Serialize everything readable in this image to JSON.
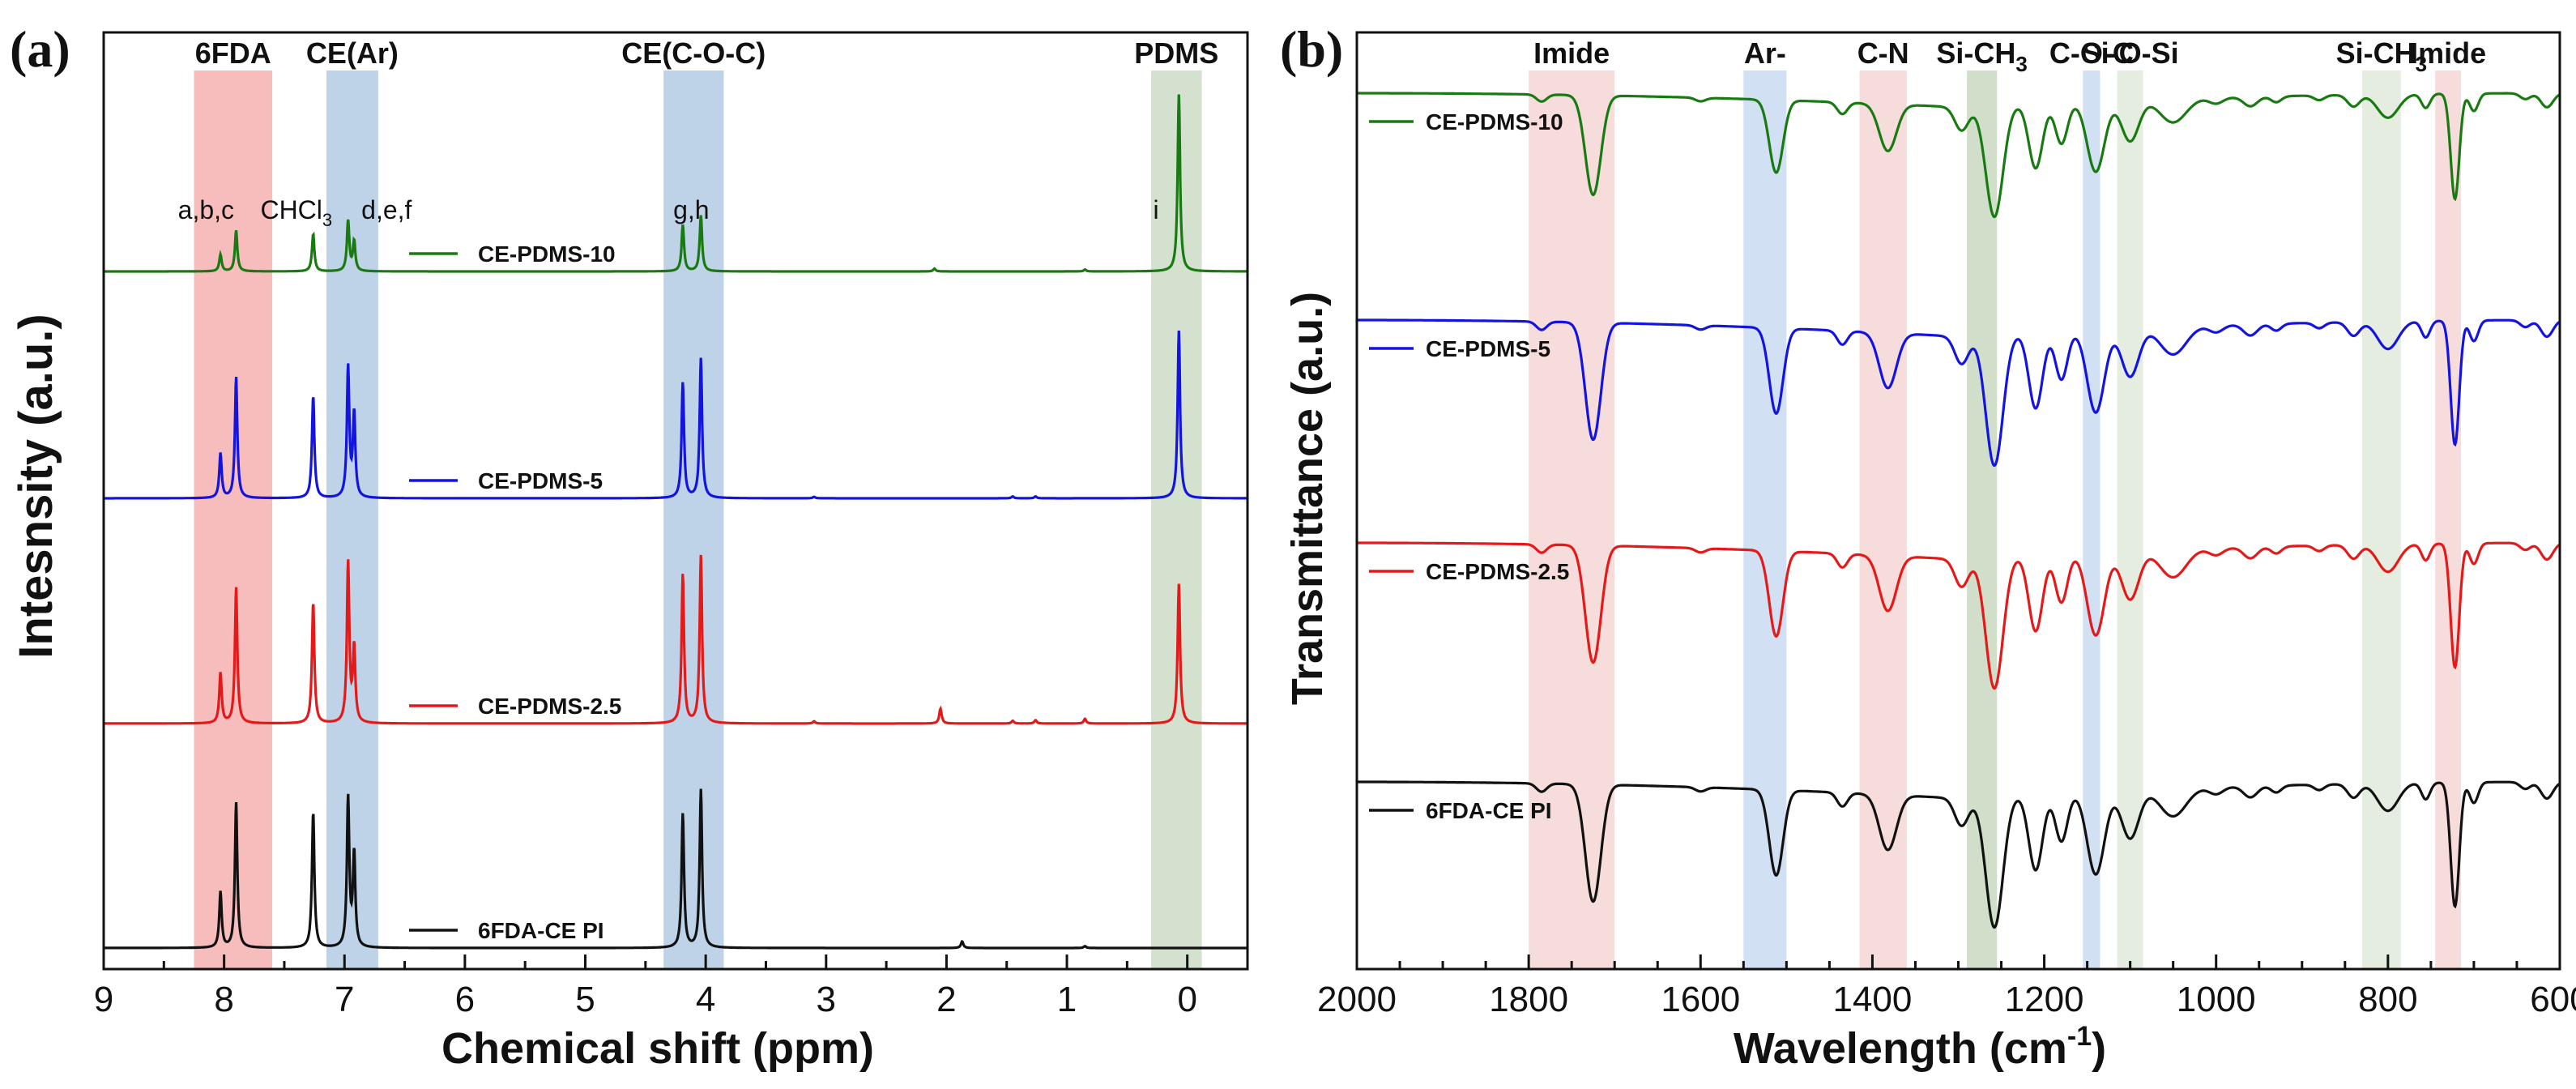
{
  "panels": [
    {
      "id": "a",
      "panel_label": "(a)",
      "chart_data": {
        "type": "line",
        "title": "",
        "xlabel": "Chemical shift (ppm)",
        "ylabel": "Intesnsity (a.u.)",
        "xlim": [
          9,
          -0.5
        ],
        "x_reversed": true,
        "xticks": [
          9,
          8,
          7,
          6,
          5,
          4,
          3,
          2,
          1,
          0
        ],
        "grid": false,
        "legend_position": "inline-left-of-peaks",
        "bands": [
          {
            "label": "6FDA",
            "from": 8.25,
            "to": 7.6,
            "color": "#f4a6a6"
          },
          {
            "label": "CE(Ar)",
            "from": 7.15,
            "to": 6.72,
            "color": "#a9c4e0"
          },
          {
            "label": "CE(C-O-C)",
            "from": 4.35,
            "to": 3.85,
            "color": "#a9c4e0"
          },
          {
            "label": "PDMS",
            "from": 0.3,
            "to": -0.12,
            "color": "#c4d7bd"
          }
        ],
        "peak_labels": [
          {
            "text": "a,b,c",
            "x": 8.15
          },
          {
            "text": "CHCl",
            "sub": "3",
            "x": 7.4
          },
          {
            "text": "d,e,f",
            "x": 6.65
          },
          {
            "text": "g,h",
            "x": 4.12
          },
          {
            "text": "i",
            "x": 0.26
          }
        ],
        "series": [
          {
            "name": "CE-PDMS-10",
            "color": "#1a7a12",
            "offset": 3,
            "peaks": [
              [
                8.03,
                0.09
              ],
              [
                7.9,
                0.22
              ],
              [
                7.26,
                0.2
              ],
              [
                6.97,
                0.27
              ],
              [
                6.92,
                0.16
              ],
              [
                4.19,
                0.25
              ],
              [
                4.04,
                0.3
              ],
              [
                2.1,
                0.015
              ],
              [
                0.85,
                0.01
              ],
              [
                0.07,
                0.95
              ]
            ]
          },
          {
            "name": "CE-PDMS-5",
            "color": "#1414e0",
            "offset": 2,
            "peaks": [
              [
                8.03,
                0.24
              ],
              [
                7.9,
                0.65
              ],
              [
                7.26,
                0.55
              ],
              [
                6.97,
                0.7
              ],
              [
                6.92,
                0.45
              ],
              [
                4.19,
                0.62
              ],
              [
                4.04,
                0.75
              ],
              [
                3.1,
                0.008
              ],
              [
                1.45,
                0.01
              ],
              [
                1.26,
                0.01
              ],
              [
                0.07,
                0.9
              ]
            ]
          },
          {
            "name": "CE-PDMS-2.5",
            "color": "#e41a1a",
            "offset": 1,
            "peaks": [
              [
                8.03,
                0.27
              ],
              [
                7.9,
                0.73
              ],
              [
                7.26,
                0.65
              ],
              [
                6.97,
                0.86
              ],
              [
                6.92,
                0.4
              ],
              [
                4.19,
                0.8
              ],
              [
                4.04,
                0.9
              ],
              [
                3.1,
                0.012
              ],
              [
                2.05,
                0.08
              ],
              [
                1.45,
                0.015
              ],
              [
                1.26,
                0.018
              ],
              [
                0.85,
                0.025
              ],
              [
                0.07,
                0.75
              ]
            ]
          },
          {
            "name": "6FDA-CE PI",
            "color": "#111111",
            "offset": 0,
            "peaks": [
              [
                8.03,
                0.3
              ],
              [
                7.9,
                0.78
              ],
              [
                7.26,
                0.73
              ],
              [
                6.97,
                0.8
              ],
              [
                6.92,
                0.5
              ],
              [
                4.19,
                0.72
              ],
              [
                4.04,
                0.85
              ],
              [
                1.87,
                0.035
              ],
              [
                0.85,
                0.01
              ]
            ]
          }
        ]
      }
    },
    {
      "id": "b",
      "panel_label": "(b)",
      "chart_data": {
        "type": "line",
        "title": "",
        "xlabel": "Wavelength (cm",
        "xlabel_sup": "-1",
        "xlabel_tail": ")",
        "ylabel": "Transmittance (a.u.)",
        "xlim": [
          2000,
          600
        ],
        "x_reversed": true,
        "xticks": [
          2000,
          1800,
          1600,
          1400,
          1200,
          1000,
          800,
          600
        ],
        "grid": false,
        "legend_position": "inline-left",
        "bands": [
          {
            "label": "Imide",
            "from": 1800,
            "to": 1700,
            "color": "#f6d6d6"
          },
          {
            "label": "Ar-",
            "from": 1550,
            "to": 1500,
            "color": "#c9daf0"
          },
          {
            "label": "C-N",
            "from": 1415,
            "to": 1360,
            "color": "#f6d6d6"
          },
          {
            "label": "Si-CH",
            "sub": "3",
            "from": 1290,
            "to": 1255,
            "color": "#c9d9c1"
          },
          {
            "label": "C-O-C",
            "from": 1155,
            "to": 1135,
            "color": "#c9daf0"
          },
          {
            "label": "Si-O-Si",
            "from": 1115,
            "to": 1085,
            "color": "#dfeadb"
          },
          {
            "label": "Si-CH",
            "sub": "3",
            "from": 830,
            "to": 785,
            "color": "#dfeadb"
          },
          {
            "label": "Imide",
            "from": 745,
            "to": 715,
            "color": "#f6d6d6"
          }
        ],
        "series": [
          {
            "name": "CE-PDMS-10",
            "color": "#1a7a12",
            "offset": 3,
            "scale": 0.85
          },
          {
            "name": "CE-PDMS-5",
            "color": "#1414e0",
            "offset": 2,
            "scale": 1
          },
          {
            "name": "CE-PDMS-2.5",
            "color": "#e41a1a",
            "offset": 1,
            "scale": 1
          },
          {
            "name": "6FDA-CE PI",
            "color": "#111111",
            "offset": 0,
            "scale": 1
          }
        ],
        "absorption_bands": [
          [
            1785,
            0.06,
            6
          ],
          [
            1725,
            0.85,
            9
          ],
          [
            1600,
            0.03,
            6
          ],
          [
            1512,
            0.62,
            8
          ],
          [
            1435,
            0.1,
            6
          ],
          [
            1382,
            0.4,
            10
          ],
          [
            1296,
            0.2,
            8
          ],
          [
            1258,
            0.95,
            10
          ],
          [
            1210,
            0.55,
            8
          ],
          [
            1180,
            0.35,
            7
          ],
          [
            1140,
            0.6,
            10
          ],
          [
            1100,
            0.35,
            10
          ],
          [
            1050,
            0.2,
            15
          ],
          [
            1000,
            0.05,
            8
          ],
          [
            960,
            0.08,
            8
          ],
          [
            930,
            0.05,
            6
          ],
          [
            880,
            0.04,
            6
          ],
          [
            840,
            0.1,
            7
          ],
          [
            800,
            0.2,
            12
          ],
          [
            756,
            0.12,
            5
          ],
          [
            722,
            0.9,
            5
          ],
          [
            700,
            0.15,
            5
          ],
          [
            640,
            0.05,
            6
          ],
          [
            615,
            0.12,
            7
          ]
        ]
      }
    }
  ]
}
